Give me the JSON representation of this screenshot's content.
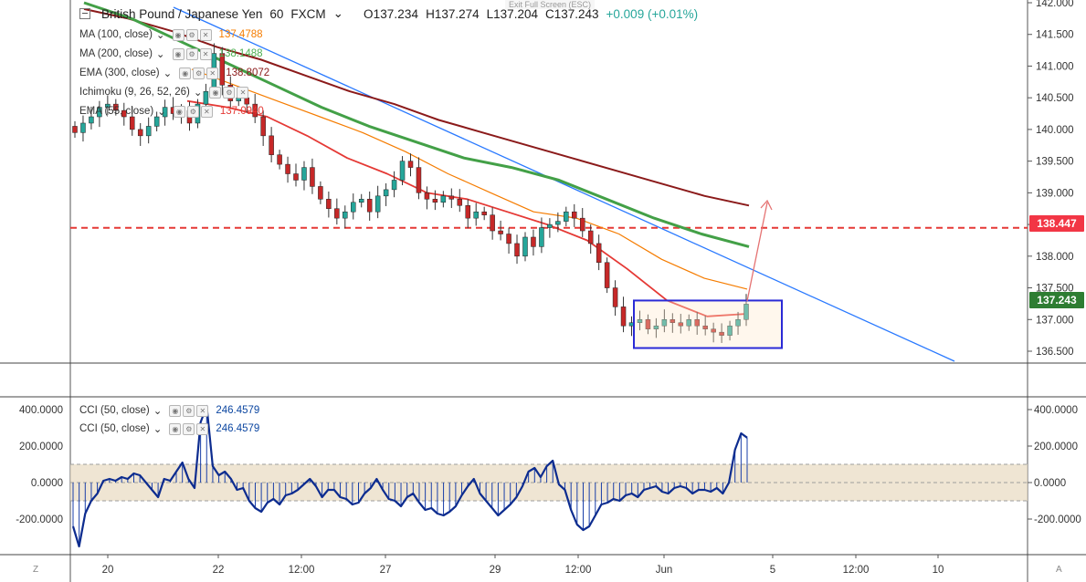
{
  "window": {
    "exit_fullscreen": "Exit Full Screen (ESC)"
  },
  "header": {
    "symbol": "British Pound / Japanese Yen",
    "interval": "60",
    "exchange": "FXCM",
    "open": "O137.234",
    "high": "H137.274",
    "low": "L137.204",
    "close": "C137.243",
    "change": "+0.009 (+0.01%)"
  },
  "indicators": [
    {
      "label": "MA (100, close)",
      "value": "137.4788",
      "color": "#f57c00"
    },
    {
      "label": "MA (200, close)",
      "value": "138.1488",
      "color": "#4caf50"
    },
    {
      "label": "EMA (300, close)",
      "value": "138.8072",
      "color": "#8b1a1a"
    },
    {
      "label": "Ichimoku (9, 26, 52, 26)",
      "value": "",
      "color": "#2196f3"
    },
    {
      "label": "EMA (55, close)",
      "value": "137.0940",
      "color": "#e53935"
    }
  ],
  "cci_legends": [
    {
      "label": "CCI (50, close)",
      "value": "246.4579"
    },
    {
      "label": "CCI (50, close)",
      "value": "246.4579"
    }
  ],
  "price_tags": {
    "resistance": "138.447",
    "last": "137.243",
    "resistance_color": "#f23645",
    "last_color": "#2e7d32"
  },
  "corner_labels": {
    "left": "Z",
    "right": "A"
  },
  "chart_data": {
    "type": "line",
    "price_axis": {
      "ticks": [
        136.5,
        137.0,
        137.5,
        138.0,
        138.5,
        139.0,
        139.5,
        140.0,
        140.5,
        141.0,
        141.5,
        142.0
      ],
      "tick_labels": [
        "136.500",
        "137.000",
        "137.500",
        "138.000",
        "138.500",
        "139.000",
        "139.500",
        "140.000",
        "140.500",
        "141.000",
        "141.500",
        "142.000"
      ]
    },
    "time_axis": {
      "labels": [
        "20",
        "22",
        "12:00",
        "27",
        "29",
        "12:00",
        "Jun",
        "5",
        "12:00",
        "10"
      ]
    },
    "candles_close": [
      139.95,
      140.1,
      140.2,
      140.35,
      140.4,
      140.3,
      140.2,
      140.0,
      139.9,
      140.05,
      140.2,
      140.35,
      140.25,
      140.3,
      140.1,
      140.4,
      140.6,
      141.2,
      140.7,
      140.45,
      140.5,
      140.4,
      140.2,
      139.9,
      139.6,
      139.45,
      139.3,
      139.2,
      139.4,
      139.1,
      138.9,
      138.75,
      138.6,
      138.7,
      138.85,
      138.9,
      138.7,
      138.95,
      139.05,
      139.2,
      139.5,
      139.4,
      139.0,
      138.9,
      138.85,
      138.95,
      138.9,
      138.8,
      138.6,
      138.7,
      138.65,
      138.4,
      138.35,
      138.2,
      138.0,
      138.3,
      138.15,
      138.45,
      138.5,
      138.55,
      138.7,
      138.6,
      138.4,
      138.2,
      137.9,
      137.5,
      137.2,
      136.9,
      136.95,
      137.0,
      136.85,
      136.9,
      137.0,
      136.95,
      136.9,
      137.0,
      136.9,
      136.85,
      136.8,
      136.75,
      136.9,
      137.0,
      137.243
    ],
    "series": [
      {
        "name": "EMA (300, close)",
        "values": [
          141.9,
          141.75,
          141.55,
          141.3,
          141.1,
          140.85,
          140.6,
          140.4,
          140.15,
          139.95,
          139.75,
          139.55,
          139.35,
          139.15,
          138.95,
          138.8
        ]
      },
      {
        "name": "MA (200, close)",
        "values": [
          142.0,
          141.75,
          141.4,
          141.05,
          140.7,
          140.35,
          140.05,
          139.8,
          139.55,
          139.4,
          139.2,
          138.9,
          138.6,
          138.35,
          138.15
        ]
      },
      {
        "name": "MA (100, close)",
        "values": [
          140.95,
          140.7,
          140.45,
          140.2,
          139.95,
          139.65,
          139.3,
          139.0,
          138.7,
          138.6,
          138.35,
          137.95,
          137.65,
          137.48
        ]
      },
      {
        "name": "EMA (55, close)",
        "values": [
          140.45,
          140.35,
          140.2,
          139.9,
          139.55,
          139.3,
          139.0,
          138.9,
          138.7,
          138.5,
          138.25,
          137.8,
          137.3,
          137.05,
          137.09
        ]
      }
    ],
    "horizontal_level": 138.447,
    "range_box": {
      "top": 137.3,
      "bottom": 136.55
    },
    "cci_axis": {
      "ticks": [
        400,
        200,
        0,
        -200
      ],
      "tick_labels": [
        "400.0000",
        "200.0000",
        "0.0000",
        "-200.0000"
      ],
      "band": [
        100,
        -100
      ]
    },
    "cci_values": [
      -240,
      -350,
      -170,
      -100,
      -60,
      10,
      20,
      10,
      30,
      20,
      50,
      40,
      0,
      -40,
      -80,
      20,
      10,
      60,
      110,
      20,
      -30,
      330,
      420,
      90,
      40,
      60,
      20,
      -40,
      -30,
      -100,
      -140,
      -160,
      -110,
      -90,
      -120,
      -70,
      -60,
      -40,
      -10,
      20,
      -20,
      -80,
      -40,
      -40,
      -80,
      -90,
      -120,
      -110,
      -60,
      -30,
      20,
      -40,
      -90,
      -100,
      -130,
      -80,
      -60,
      -110,
      -150,
      -140,
      -170,
      -180,
      -160,
      -130,
      -70,
      -20,
      20,
      -60,
      -100,
      -140,
      -180,
      -150,
      -120,
      -80,
      -20,
      60,
      80,
      30,
      90,
      120,
      -10,
      -40,
      -150,
      -230,
      -260,
      -240,
      -180,
      -120,
      -110,
      -90,
      -100,
      -70,
      -60,
      -80,
      -40,
      -30,
      -20,
      -50,
      -60,
      -30,
      -20,
      -30,
      -60,
      -40,
      -40,
      -50,
      -30,
      -60,
      0,
      180,
      270,
      246
    ]
  }
}
